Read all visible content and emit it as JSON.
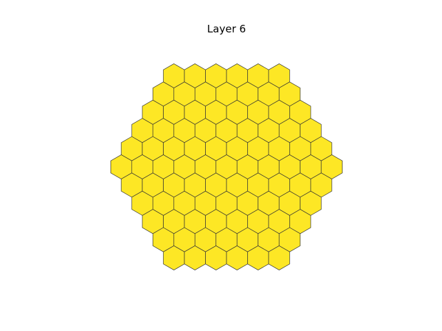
{
  "figure": {
    "title": "Layer 6"
  },
  "hex_grid": {
    "shape": "hexagon",
    "orientation": "pointy-top",
    "rings": 5,
    "cell_count": 91,
    "fill_color": "#fde725",
    "edge_color": "#333333",
    "background_color": "#ffffff"
  }
}
